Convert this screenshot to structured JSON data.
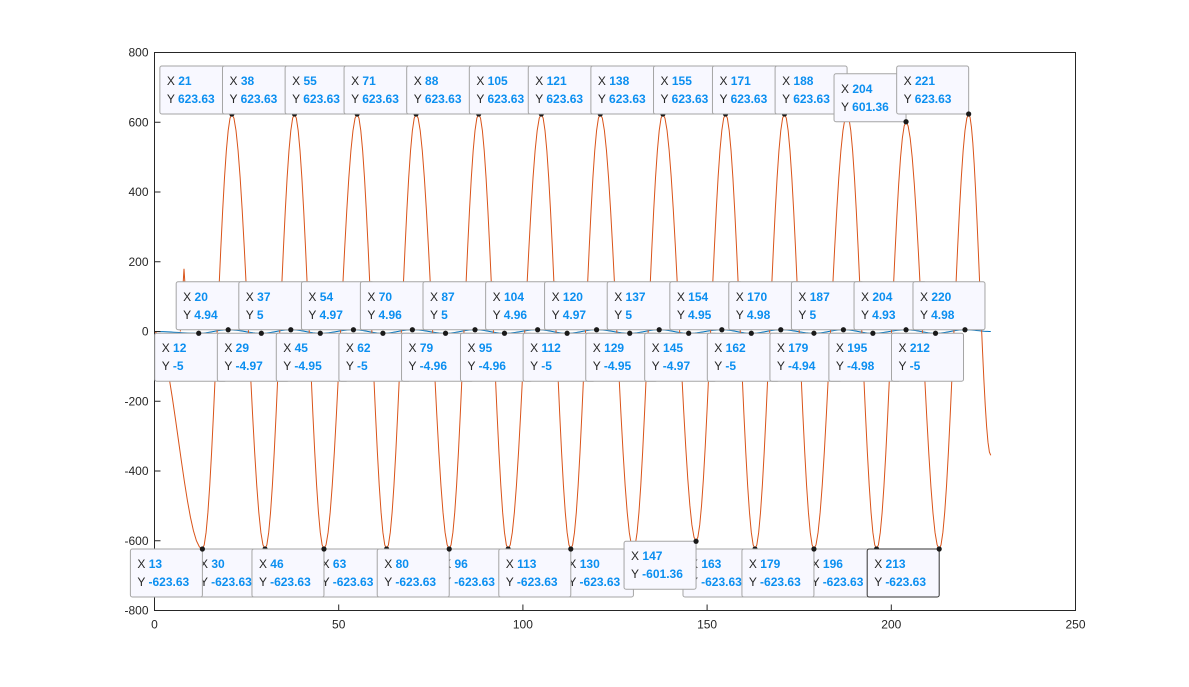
{
  "chart_data": {
    "type": "line",
    "xlim": [
      0,
      250
    ],
    "ylim": [
      -800,
      800
    ],
    "xticks": [
      0,
      50,
      100,
      150,
      200,
      250
    ],
    "yticks": [
      -800,
      -600,
      -400,
      -200,
      0,
      200,
      400,
      600,
      800
    ],
    "grid": false,
    "colors": {
      "signal": "#d95319",
      "baseline": "#0072bd"
    },
    "series": [
      {
        "style": "oscillation",
        "color": "#d95319",
        "peaks": [
          [
            21,
            623.63
          ],
          [
            38,
            623.63
          ],
          [
            55,
            623.63
          ],
          [
            71,
            623.63
          ],
          [
            88,
            623.63
          ],
          [
            105,
            623.63
          ],
          [
            121,
            623.63
          ],
          [
            138,
            623.63
          ],
          [
            155,
            623.63
          ],
          [
            171,
            623.63
          ],
          [
            188,
            623.63
          ],
          [
            204,
            601.36
          ],
          [
            221,
            623.63
          ]
        ],
        "troughs": [
          [
            13,
            -623.63
          ],
          [
            30,
            -623.63
          ],
          [
            46,
            -623.63
          ],
          [
            63,
            -623.63
          ],
          [
            80,
            -623.63
          ],
          [
            96,
            -623.63
          ],
          [
            113,
            -623.63
          ],
          [
            130,
            -623.63
          ],
          [
            147,
            -601.36
          ],
          [
            163,
            -623.63
          ],
          [
            179,
            -623.63
          ],
          [
            196,
            -623.63
          ],
          [
            213,
            -623.63
          ]
        ],
        "start": [
          0,
          0
        ],
        "end": [
          227,
          -355
        ]
      },
      {
        "style": "small-wave",
        "color": "#0072bd",
        "peaks": [
          [
            20,
            4.94
          ],
          [
            37,
            5
          ],
          [
            54,
            4.97
          ],
          [
            70,
            4.96
          ],
          [
            87,
            5
          ],
          [
            104,
            4.96
          ],
          [
            120,
            4.97
          ],
          [
            137,
            5
          ],
          [
            154,
            4.95
          ],
          [
            170,
            4.98
          ],
          [
            187,
            5
          ],
          [
            204,
            4.93
          ],
          [
            220,
            4.98
          ]
        ],
        "troughs": [
          [
            12,
            -5
          ],
          [
            29,
            -4.97
          ],
          [
            45,
            -4.95
          ],
          [
            62,
            -5
          ],
          [
            79,
            -4.96
          ],
          [
            95,
            -4.96
          ],
          [
            112,
            -5
          ],
          [
            129,
            -4.95
          ],
          [
            145,
            -4.97
          ],
          [
            162,
            -5
          ],
          [
            179,
            -4.94
          ],
          [
            195,
            -4.98
          ],
          [
            212,
            -5
          ]
        ],
        "start": [
          0,
          0
        ],
        "end": [
          227,
          0
        ]
      }
    ],
    "datatips": [
      {
        "x": "21",
        "y": "623.63"
      },
      {
        "x": "38",
        "y": "623.63"
      },
      {
        "x": "55",
        "y": "623.63"
      },
      {
        "x": "71",
        "y": "623.63"
      },
      {
        "x": "88",
        "y": "623.63"
      },
      {
        "x": "105",
        "y": "623.63"
      },
      {
        "x": "121",
        "y": "623.63"
      },
      {
        "x": "138",
        "y": "623.63"
      },
      {
        "x": "155",
        "y": "623.63"
      },
      {
        "x": "171",
        "y": "623.63"
      },
      {
        "x": "188",
        "y": "623.63"
      },
      {
        "x": "204",
        "y": "601.36"
      },
      {
        "x": "221",
        "y": "623.63"
      },
      {
        "x": "20",
        "y": "4.94"
      },
      {
        "x": "37",
        "y": "5"
      },
      {
        "x": "54",
        "y": "4.97"
      },
      {
        "x": "70",
        "y": "4.96"
      },
      {
        "x": "87",
        "y": "5"
      },
      {
        "x": "104",
        "y": "4.96"
      },
      {
        "x": "120",
        "y": "4.97"
      },
      {
        "x": "137",
        "y": "5"
      },
      {
        "x": "154",
        "y": "4.95"
      },
      {
        "x": "170",
        "y": "4.98"
      },
      {
        "x": "187",
        "y": "5"
      },
      {
        "x": "204",
        "y": "4.93"
      },
      {
        "x": "220",
        "y": "4.98"
      },
      {
        "x": "12",
        "y": "-5"
      },
      {
        "x": "29",
        "y": "-4.97"
      },
      {
        "x": "45",
        "y": "-4.95"
      },
      {
        "x": "62",
        "y": "-5"
      },
      {
        "x": "79",
        "y": "-4.96"
      },
      {
        "x": "95",
        "y": "-4.96"
      },
      {
        "x": "112",
        "y": "-5"
      },
      {
        "x": "129",
        "y": "-4.95"
      },
      {
        "x": "145",
        "y": "-4.97"
      },
      {
        "x": "162",
        "y": "-5"
      },
      {
        "x": "179",
        "y": "-4.94"
      },
      {
        "x": "195",
        "y": "-4.98"
      },
      {
        "x": "212",
        "y": "-5"
      },
      {
        "x": "30",
        "y": "-623.63"
      },
      {
        "x": "63",
        "y": "-623.63"
      },
      {
        "x": "96",
        "y": "-623.63"
      },
      {
        "x": "130",
        "y": "-623.63"
      },
      {
        "x": "163",
        "y": "-623.63"
      },
      {
        "x": "196",
        "y": "-623.63"
      },
      {
        "x": "13",
        "y": "-623.63"
      },
      {
        "x": "46",
        "y": "-623.63"
      },
      {
        "x": "80",
        "y": "-623.63"
      },
      {
        "x": "113",
        "y": "-623.63"
      },
      {
        "x": "147",
        "y": "-601.36"
      },
      {
        "x": "179",
        "y": "-623.63"
      },
      {
        "x": "213",
        "y": "-623.63",
        "selected": true
      }
    ]
  },
  "datatip_labels": {
    "x": "X",
    "y": "Y"
  }
}
